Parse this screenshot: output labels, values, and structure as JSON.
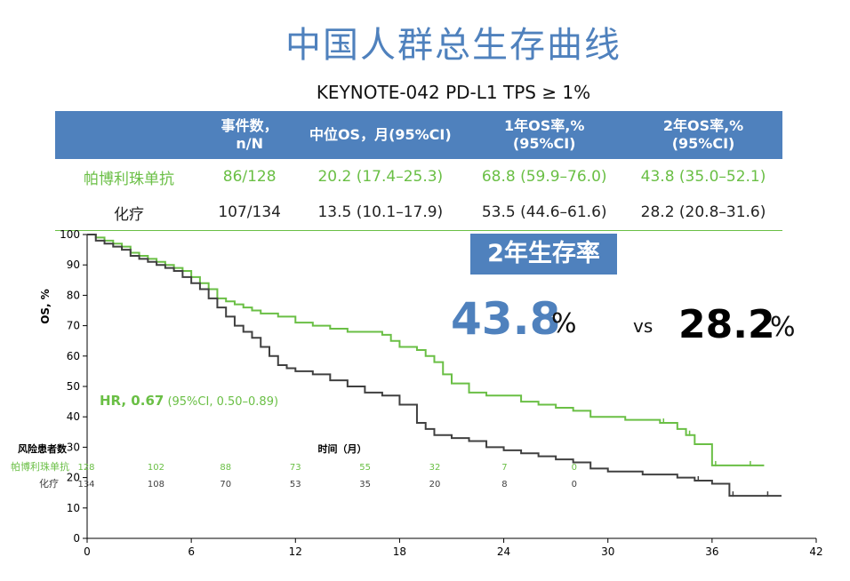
{
  "title": "中国人群总生存曲线",
  "subtitle": "KEYNOTE-042 PD-L1 TPS ≥ 1%",
  "table": {
    "headers": [
      "",
      "事件数，\nn/N",
      "中位OS，月(95%CI)",
      "1年OS率,%\n(95%CI)",
      "2年OS率,%\n(95%CI)"
    ],
    "rows": [
      {
        "name": "帕博利珠单抗",
        "events": "86/128",
        "median": "20.2 (17.4–25.3)",
        "os1": "68.8 (59.9–76.0)",
        "os2": "43.8 (35.0–52.1)"
      },
      {
        "name": "化疗",
        "events": "107/134",
        "median": "13.5 (10.1–17.9)",
        "os1": "53.5 (44.6–61.6)",
        "os2": "28.2 (20.8–31.6)"
      }
    ]
  },
  "highlight": {
    "badge": "2年生存率",
    "pembro_value": "43.8",
    "pembro_unit": "%",
    "vs": "vs",
    "chemo_value": "28.2",
    "chemo_unit": "%"
  },
  "colors": {
    "pembro": "#6abf45",
    "chemo": "#404040",
    "accent": "#4f81bd"
  },
  "chart_data": {
    "type": "line",
    "title": "",
    "xlabel": "时间（月）",
    "ylabel": "OS, %",
    "xlim": [
      0,
      42
    ],
    "ylim": [
      0,
      100
    ],
    "xticks": [
      0,
      6,
      12,
      18,
      24,
      30,
      36,
      42
    ],
    "yticks": [
      0,
      10,
      20,
      30,
      40,
      50,
      60,
      70,
      80,
      90,
      100
    ],
    "hr_label": "HR, 0.67",
    "hr_ci": " (95%CI, 0.50–0.89)",
    "series": [
      {
        "name": "帕博利珠单抗",
        "color": "#6abf45",
        "x": [
          0,
          0.5,
          1,
          1.5,
          2,
          2.5,
          3,
          3.5,
          4,
          4.5,
          5,
          5.5,
          6,
          6.5,
          7,
          7.5,
          8,
          8.5,
          9,
          9.5,
          10,
          10.5,
          11,
          11.5,
          12,
          13,
          14,
          15,
          16,
          17,
          17.5,
          18,
          19,
          19.5,
          20,
          20.5,
          21,
          22,
          23,
          24,
          25,
          26,
          27,
          28,
          29,
          30,
          31,
          32,
          33,
          34,
          34.5,
          35,
          36,
          37,
          38,
          39
        ],
        "y": [
          100,
          99,
          98,
          97,
          96,
          94,
          93,
          92,
          91,
          90,
          89,
          88,
          86,
          84,
          82,
          79,
          78,
          77,
          76,
          75,
          74,
          74,
          73,
          73,
          71,
          70,
          69,
          68,
          68,
          67,
          65,
          63,
          62,
          60,
          58,
          54,
          51,
          48,
          47,
          47,
          45,
          44,
          43,
          42,
          40,
          40,
          39,
          39,
          38,
          36,
          34,
          31,
          24,
          24,
          24,
          24
        ]
      },
      {
        "name": "化疗",
        "color": "#404040",
        "x": [
          0,
          0.5,
          1,
          1.5,
          2,
          2.5,
          3,
          3.5,
          4,
          4.5,
          5,
          5.5,
          6,
          6.5,
          7,
          7.5,
          8,
          8.5,
          9,
          9.5,
          10,
          10.5,
          11,
          11.5,
          12,
          13,
          14,
          15,
          16,
          17,
          18,
          19,
          19.5,
          20,
          21,
          22,
          23,
          24,
          25,
          26,
          27,
          28,
          29,
          30,
          31,
          32,
          33,
          34,
          35,
          36,
          37,
          38,
          39,
          40
        ],
        "y": [
          100,
          98,
          97,
          96,
          95,
          93,
          92,
          91,
          90,
          89,
          88,
          86,
          84,
          82,
          79,
          76,
          73,
          70,
          68,
          66,
          63,
          60,
          57,
          56,
          55,
          54,
          52,
          50,
          48,
          47,
          44,
          38,
          36,
          34,
          33,
          32,
          30,
          29,
          28,
          27,
          26,
          25,
          23,
          22,
          22,
          21,
          21,
          20,
          19,
          18,
          14,
          14,
          14,
          14
        ]
      }
    ],
    "risk_table": {
      "header": "风险患者数",
      "times": [
        0,
        4,
        8,
        12,
        16,
        20,
        24,
        28
      ],
      "rows": [
        {
          "name": "帕博利珠单抗",
          "color": "#6abf45",
          "values": [
            "128",
            "102",
            "88",
            "73",
            "55",
            "32",
            "7",
            "0"
          ]
        },
        {
          "name": "化疗",
          "color": "#404040",
          "values": [
            "134",
            "108",
            "70",
            "53",
            "35",
            "20",
            "8",
            "0"
          ]
        }
      ]
    }
  }
}
